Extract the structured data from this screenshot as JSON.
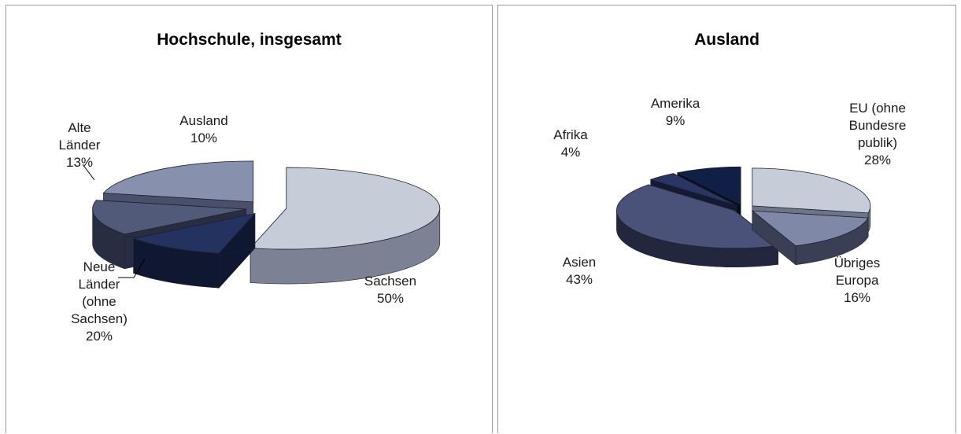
{
  "chart_data": [
    {
      "type": "pie",
      "title": "Hochschule, insgesamt",
      "slices": [
        {
          "label": [
            "Sachsen"
          ],
          "value": 50,
          "value_label": "50%",
          "color": "#c7ccd9",
          "dark": "#7c8294"
        },
        {
          "label": [
            "Ausland"
          ],
          "value": 10,
          "value_label": "10%",
          "color": "#243260",
          "dark": "#0f1731"
        },
        {
          "label": [
            "Alte",
            "Länder"
          ],
          "value": 13,
          "value_label": "13%",
          "color": "#525a7a",
          "dark": "#282d42"
        },
        {
          "label": [
            "Neue",
            "Länder",
            "(ohne",
            "Sachsen)"
          ],
          "value": 20,
          "value_label": "20%",
          "color": "#8790ad",
          "dark": "#4a5069"
        }
      ]
    },
    {
      "type": "pie",
      "title": "Ausland",
      "slices": [
        {
          "label": [
            "EU (ohne",
            "Bundesre",
            "publik)"
          ],
          "value": 28,
          "value_label": "28%",
          "color": "#c7ccd9",
          "dark": "#6f7585"
        },
        {
          "label": [
            "Übriges",
            "Europa"
          ],
          "value": 16,
          "value_label": "16%",
          "color": "#7f88a6",
          "dark": "#3a3f55"
        },
        {
          "label": [
            "Asien"
          ],
          "value": 43,
          "value_label": "43%",
          "color": "#4a527a",
          "dark": "#22273d"
        },
        {
          "label": [
            "Afrika"
          ],
          "value": 4,
          "value_label": "4%",
          "color": "#2a3563",
          "dark": "#141a33"
        },
        {
          "label": [
            "Amerika"
          ],
          "value": 9,
          "value_label": "9%",
          "color": "#101f45",
          "dark": "#060c1d"
        }
      ]
    }
  ]
}
